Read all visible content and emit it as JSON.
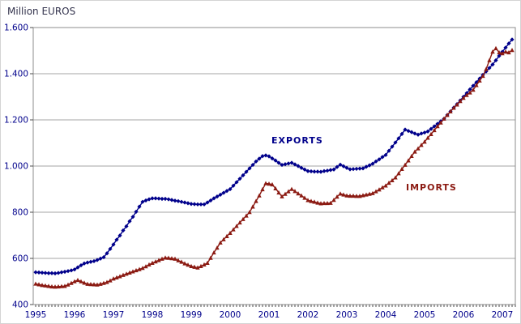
{
  "title": "Million EUROS",
  "colors": {
    "exports": "#00008B",
    "imports": "#8B1A12",
    "axis_text": "#00008B",
    "title_text": "#33334D",
    "grid": "#A6A6A6",
    "frame": "#8C8C8C",
    "tick": "#4D4D4D",
    "background": "#FFFFFF"
  },
  "chart_data": {
    "type": "line",
    "title": "Million EUROS",
    "x_unit": "month",
    "x_range_label": "Jan 1995 - Apr 2007",
    "x_tick_labels": [
      "1995",
      "1996",
      "1997",
      "1998",
      "1999",
      "2000",
      "2001",
      "2002",
      "2003",
      "2004",
      "2005",
      "2006",
      "2007"
    ],
    "ylim": [
      400,
      1600
    ],
    "y_ticks": [
      {
        "value": 1600,
        "label": "1.600"
      },
      {
        "value": 1400,
        "label": "1.400"
      },
      {
        "value": 1200,
        "label": "1.200"
      },
      {
        "value": 1000,
        "label": "1.000"
      },
      {
        "value": 800,
        "label": "800"
      },
      {
        "value": 600,
        "label": "600"
      },
      {
        "value": 400,
        "label": "400"
      }
    ],
    "grid": true,
    "legend_position": "inline-annotations",
    "series": [
      {
        "name": "EXPORTS",
        "color": "#00008B",
        "marker": "diamond",
        "values": [
          540,
          539,
          538,
          537,
          536,
          536,
          535,
          537,
          540,
          542,
          545,
          548,
          552,
          561,
          570,
          578,
          582,
          585,
          588,
          593,
          599,
          605,
          622,
          641,
          660,
          681,
          699,
          721,
          739,
          761,
          780,
          802,
          824,
          845,
          851,
          856,
          860,
          860,
          859,
          858,
          858,
          856,
          853,
          850,
          848,
          845,
          842,
          839,
          836,
          835,
          834,
          834,
          834,
          842,
          851,
          860,
          868,
          876,
          884,
          892,
          900,
          915,
          930,
          945,
          960,
          975,
          990,
          1005,
          1020,
          1032,
          1043,
          1046,
          1042,
          1033,
          1024,
          1014,
          1005,
          1008,
          1011,
          1014,
          1007,
          1000,
          992,
          985,
          978,
          977,
          976,
          976,
          975,
          978,
          980,
          983,
          985,
          996,
          1006,
          999,
          992,
          986,
          987,
          988,
          989,
          990,
          997,
          1003,
          1010,
          1020,
          1029,
          1039,
          1048,
          1066,
          1084,
          1102,
          1120,
          1139,
          1158,
          1152,
          1147,
          1141,
          1136,
          1141,
          1145,
          1150,
          1161,
          1172,
          1183,
          1194,
          1205,
          1221,
          1237,
          1253,
          1268,
          1284,
          1300,
          1316,
          1332,
          1348,
          1363,
          1379,
          1395,
          1410,
          1425,
          1440,
          1458,
          1477,
          1495,
          1513,
          1531,
          1548
        ]
      },
      {
        "name": "IMPORTS",
        "color": "#8B1A12",
        "marker": "triangle-up",
        "values": [
          490,
          487,
          484,
          482,
          480,
          478,
          477,
          478,
          479,
          480,
          486,
          493,
          500,
          506,
          500,
          494,
          489,
          488,
          487,
          486,
          489,
          493,
          497,
          504,
          512,
          517,
          522,
          528,
          533,
          538,
          543,
          548,
          553,
          558,
          565,
          573,
          580,
          586,
          592,
          598,
          603,
          602,
          600,
          598,
          591,
          585,
          578,
          572,
          566,
          563,
          560,
          566,
          573,
          580,
          602,
          625,
          646,
          668,
          682,
          696,
          710,
          725,
          740,
          755,
          770,
          785,
          800,
          824,
          848,
          872,
          899,
          925,
          923,
          920,
          903,
          885,
          868,
          879,
          890,
          900,
          891,
          881,
          872,
          862,
          852,
          848,
          845,
          841,
          838,
          839,
          839,
          840,
          853,
          867,
          880,
          876,
          872,
          871,
          871,
          870,
          870,
          873,
          876,
          879,
          882,
          890,
          898,
          907,
          915,
          927,
          938,
          950,
          968,
          987,
          1005,
          1024,
          1043,
          1062,
          1076,
          1091,
          1105,
          1122,
          1138,
          1155,
          1172,
          1188,
          1205,
          1221,
          1236,
          1252,
          1266,
          1281,
          1295,
          1307,
          1318,
          1330,
          1350,
          1370,
          1390,
          1420,
          1458,
          1495,
          1510,
          1492,
          1488,
          1495,
          1492,
          1502
        ]
      }
    ],
    "annotations": [
      {
        "text": "EXPORTS",
        "color": "#00008B",
        "series": "EXPORTS"
      },
      {
        "text": "IMPORTS",
        "color": "#8B1A12",
        "series": "IMPORTS"
      }
    ]
  }
}
